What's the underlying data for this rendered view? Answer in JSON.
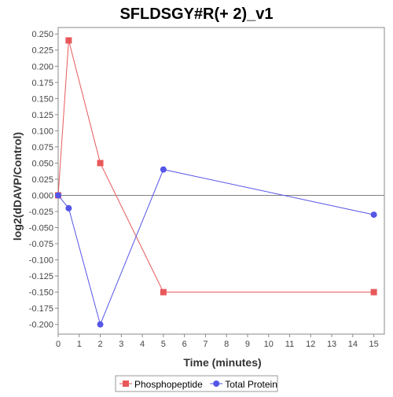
{
  "chart_data": {
    "type": "line",
    "title": "SFLDSGY#R(+ 2)_v1",
    "xlabel": "Time (minutes)",
    "ylabel": "log2(dDAVP/Control)",
    "xlim": [
      0,
      15.5
    ],
    "ylim": [
      -0.215,
      0.26
    ],
    "xticks": [
      0,
      1,
      2,
      3,
      4,
      5,
      6,
      7,
      8,
      9,
      10,
      11,
      12,
      13,
      14,
      15
    ],
    "yticks": [
      0.25,
      0.225,
      0.2,
      0.175,
      0.15,
      0.125,
      0.1,
      0.075,
      0.05,
      0.025,
      0.0,
      -0.025,
      -0.05,
      -0.075,
      -0.1,
      -0.125,
      -0.15,
      -0.175,
      -0.2
    ],
    "ytick_labels": [
      "0.250",
      "0.225",
      "0.200",
      "0.175",
      "0.150",
      "0.125",
      "0.100",
      "0.075",
      "0.050",
      "0.025",
      "0.000",
      "-0.025",
      "-0.050",
      "-0.075",
      "-0.100",
      "-0.125",
      "-0.150",
      "-0.175",
      "-0.200"
    ],
    "zero_line": true,
    "grid": false,
    "legend_position": "bottom",
    "series": [
      {
        "name": "Phosphopeptide",
        "color": "#e8585b",
        "marker": "square",
        "x": [
          0,
          0.5,
          2,
          5,
          15
        ],
        "y": [
          0.0,
          0.24,
          0.05,
          -0.15,
          -0.15
        ]
      },
      {
        "name": "Total Protein",
        "color": "#5555e8",
        "marker": "circle",
        "x": [
          0,
          0.5,
          2,
          5,
          15
        ],
        "y": [
          0.0,
          -0.02,
          -0.2,
          0.04,
          -0.03
        ]
      }
    ]
  }
}
